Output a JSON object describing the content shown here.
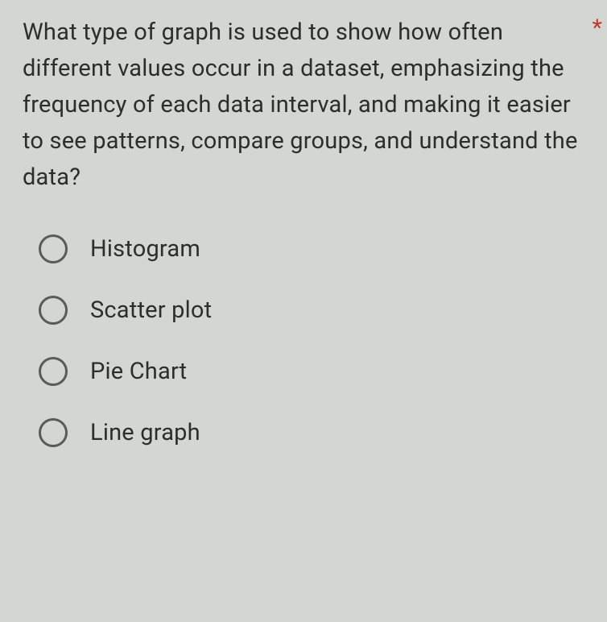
{
  "question": {
    "text": "What type of graph is used to show how often different values occur in a dataset, emphasizing the frequency of each data interval, and making it easier to see patterns, compare groups, and understand the data?",
    "required_marker": "*"
  },
  "options": [
    {
      "label": "Histogram"
    },
    {
      "label": "Scatter plot"
    },
    {
      "label": "Pie Chart"
    },
    {
      "label": "Line graph"
    }
  ],
  "colors": {
    "background": "#d4d6d3",
    "text": "#2d2d2d",
    "radio_border": "#5a5a5a",
    "required": "#c0392b"
  },
  "typography": {
    "question_fontsize": 29,
    "option_fontsize": 29,
    "line_height": 1.55
  }
}
